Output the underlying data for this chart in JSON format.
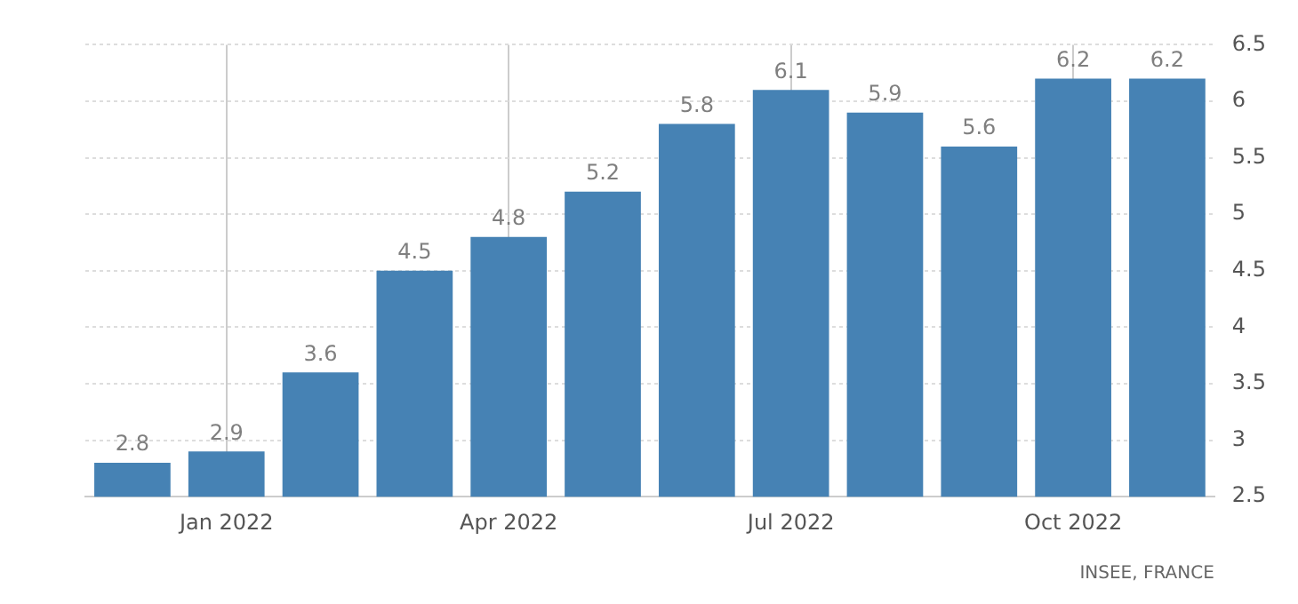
{
  "chart_data": {
    "type": "bar",
    "categories": [
      null,
      "Jan 2022",
      null,
      null,
      "Apr 2022",
      null,
      null,
      "Jul 2022",
      null,
      null,
      "Oct 2022",
      null
    ],
    "values": [
      2.8,
      2.9,
      3.6,
      4.5,
      4.8,
      5.2,
      5.8,
      6.1,
      5.9,
      5.6,
      6.2,
      6.2
    ],
    "color": "#4682b4",
    "ylim": [
      2.5,
      6.5
    ],
    "yticks": [
      2.5,
      3,
      3.5,
      4,
      4.5,
      5,
      5.5,
      6,
      6.5
    ],
    "grid": true,
    "data_labels": true,
    "annotations": [
      "INSEE, FRANCE"
    ]
  }
}
